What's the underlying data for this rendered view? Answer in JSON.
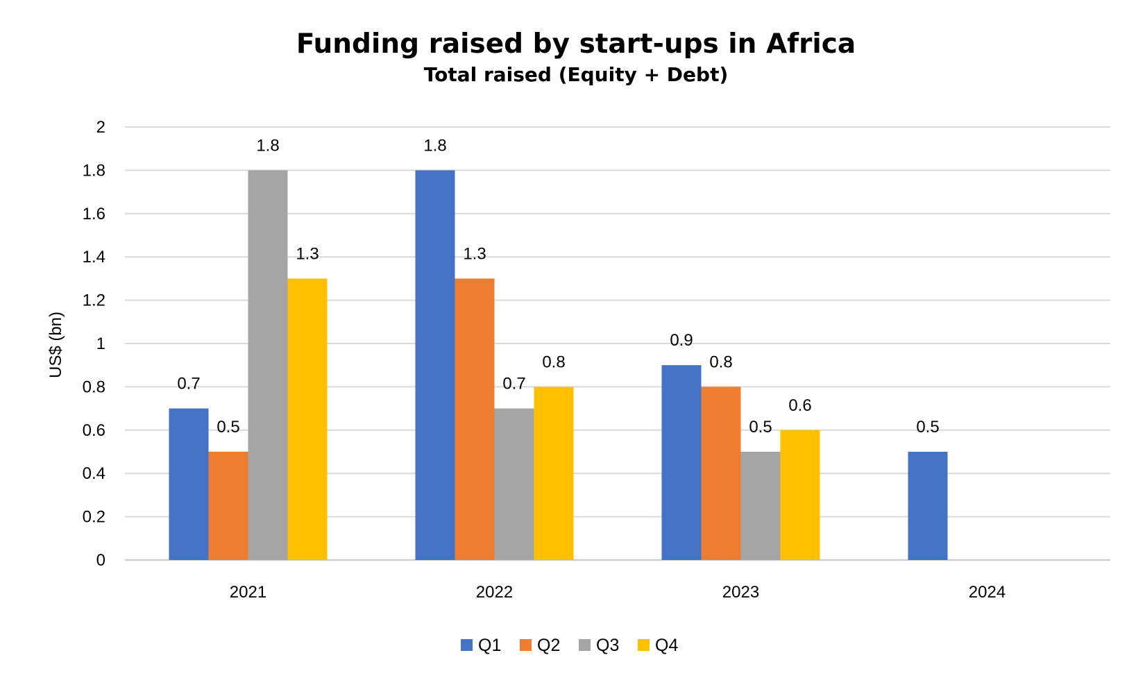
{
  "chart_data": {
    "type": "bar",
    "title": "Funding raised by start-ups in Africa",
    "subtitle": "Total raised (Equity + Debt)",
    "xlabel": "",
    "ylabel": "US$ (bn)",
    "ylim": [
      0,
      2
    ],
    "yticks": [
      0,
      0.2,
      0.4,
      0.6,
      0.8,
      1,
      1.2,
      1.4,
      1.6,
      1.8,
      2
    ],
    "ytick_labels": [
      "0",
      "0.2",
      "0.4",
      "0.6",
      "0.8",
      "1",
      "1.2",
      "1.4",
      "1.6",
      "1.8",
      "2"
    ],
    "grid": true,
    "legend_position": "bottom",
    "categories": [
      "2021",
      "2022",
      "2023",
      "2024"
    ],
    "series": [
      {
        "name": "Q1",
        "color": "#4472C4",
        "values": [
          0.7,
          1.8,
          0.9,
          0.5
        ],
        "labels": [
          "0.7",
          "1.8",
          "0.9",
          "0.5"
        ]
      },
      {
        "name": "Q2",
        "color": "#ED7D31",
        "values": [
          0.5,
          1.3,
          0.8,
          null
        ],
        "labels": [
          "0.5",
          "1.3",
          "0.8",
          null
        ]
      },
      {
        "name": "Q3",
        "color": "#A5A5A5",
        "values": [
          1.8,
          0.7,
          0.5,
          null
        ],
        "labels": [
          "1.8",
          "0.7",
          "0.5",
          null
        ]
      },
      {
        "name": "Q4",
        "color": "#FFC000",
        "values": [
          1.3,
          0.8,
          0.6,
          null
        ],
        "labels": [
          "1.3",
          "0.8",
          "0.6",
          null
        ]
      }
    ]
  }
}
